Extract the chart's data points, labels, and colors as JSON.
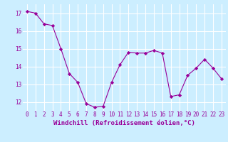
{
  "x": [
    0,
    1,
    2,
    3,
    4,
    5,
    6,
    7,
    8,
    9,
    10,
    11,
    12,
    13,
    14,
    15,
    16,
    17,
    18,
    19,
    20,
    21,
    22,
    23
  ],
  "y": [
    17.1,
    17.0,
    16.4,
    16.3,
    15.0,
    13.6,
    13.1,
    11.9,
    11.7,
    11.75,
    13.1,
    14.1,
    14.8,
    14.75,
    14.75,
    14.9,
    14.75,
    12.3,
    12.4,
    13.5,
    13.9,
    14.4,
    13.9,
    13.3
  ],
  "line_color": "#990099",
  "marker": "D",
  "marker_size": 2.2,
  "bg_color": "#cceeff",
  "grid_color": "#ffffff",
  "xlabel": "Windchill (Refroidissement éolien,°C)",
  "xlabel_color": "#990099",
  "tick_color": "#990099",
  "ylim": [
    11.5,
    17.5
  ],
  "xlim": [
    -0.5,
    23.5
  ],
  "yticks": [
    12,
    13,
    14,
    15,
    16,
    17
  ],
  "xticks": [
    0,
    1,
    2,
    3,
    4,
    5,
    6,
    7,
    8,
    9,
    10,
    11,
    12,
    13,
    14,
    15,
    16,
    17,
    18,
    19,
    20,
    21,
    22,
    23
  ],
  "xtick_labels": [
    "0",
    "1",
    "2",
    "3",
    "4",
    "5",
    "6",
    "7",
    "8",
    "9",
    "10",
    "11",
    "12",
    "13",
    "14",
    "15",
    "16",
    "17",
    "18",
    "19",
    "20",
    "21",
    "22",
    "23"
  ],
  "font_size": 5.5,
  "label_font_size": 6.5
}
